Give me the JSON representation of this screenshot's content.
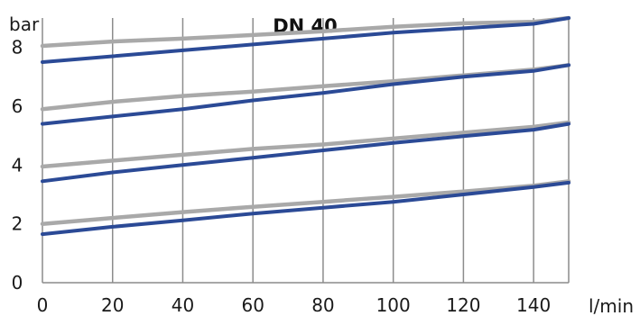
{
  "chart_data": {
    "type": "line",
    "title": "DN 40",
    "ylabel": "bar",
    "xlabel": "l/min",
    "xlim": [
      0,
      150
    ],
    "ylim": [
      0,
      9
    ],
    "x_ticks": [
      0,
      20,
      40,
      60,
      80,
      100,
      120,
      140
    ],
    "y_ticks": [
      0,
      2,
      4,
      6,
      8
    ],
    "grid": "vertical",
    "colors": {
      "series_a": "#2b4a96",
      "series_b": "#a9a9a9"
    },
    "series": [
      {
        "group": "b",
        "x": [
          0,
          20,
          40,
          60,
          80,
          100,
          120,
          140,
          150
        ],
        "y": [
          8.05,
          8.2,
          8.3,
          8.42,
          8.55,
          8.7,
          8.82,
          8.87,
          9.0
        ]
      },
      {
        "group": "a",
        "x": [
          0,
          20,
          40,
          60,
          80,
          100,
          120,
          140,
          150
        ],
        "y": [
          7.5,
          7.7,
          7.9,
          8.1,
          8.3,
          8.5,
          8.65,
          8.8,
          9.0
        ]
      },
      {
        "group": "b",
        "x": [
          0,
          20,
          40,
          60,
          80,
          100,
          120,
          140,
          150
        ],
        "y": [
          5.9,
          6.15,
          6.35,
          6.5,
          6.68,
          6.85,
          7.05,
          7.25,
          7.4
        ]
      },
      {
        "group": "a",
        "x": [
          0,
          20,
          40,
          60,
          80,
          100,
          120,
          140,
          150
        ],
        "y": [
          5.4,
          5.65,
          5.9,
          6.2,
          6.45,
          6.75,
          7.0,
          7.2,
          7.4
        ]
      },
      {
        "group": "b",
        "x": [
          0,
          20,
          40,
          60,
          80,
          100,
          120,
          140,
          150
        ],
        "y": [
          3.95,
          4.15,
          4.35,
          4.55,
          4.7,
          4.9,
          5.1,
          5.3,
          5.45
        ]
      },
      {
        "group": "a",
        "x": [
          0,
          20,
          40,
          60,
          80,
          100,
          120,
          140,
          150
        ],
        "y": [
          3.45,
          3.75,
          4.0,
          4.25,
          4.5,
          4.75,
          4.98,
          5.2,
          5.4
        ]
      },
      {
        "group": "b",
        "x": [
          0,
          20,
          40,
          60,
          80,
          100,
          120,
          140,
          150
        ],
        "y": [
          2.0,
          2.2,
          2.4,
          2.58,
          2.75,
          2.92,
          3.1,
          3.3,
          3.45
        ]
      },
      {
        "group": "a",
        "x": [
          0,
          20,
          40,
          60,
          80,
          100,
          120,
          140,
          150
        ],
        "y": [
          1.65,
          1.9,
          2.12,
          2.35,
          2.55,
          2.75,
          3.0,
          3.25,
          3.4
        ]
      }
    ]
  }
}
